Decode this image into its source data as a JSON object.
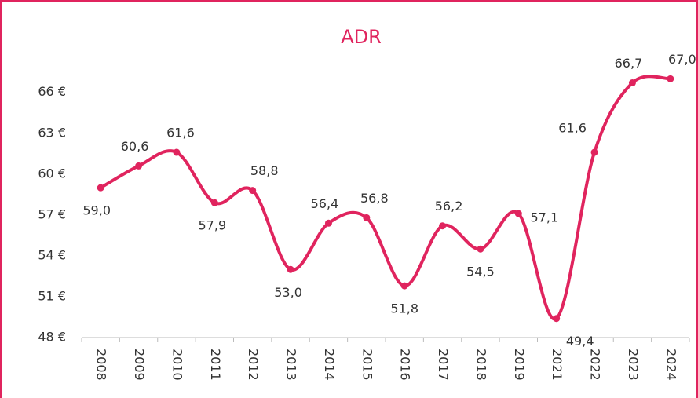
{
  "chart_data": {
    "type": "line",
    "title": "ADR",
    "categories": [
      "2008",
      "2009",
      "2010",
      "2011",
      "2012",
      "2013",
      "2014",
      "2015",
      "2016",
      "2017",
      "2018",
      "2019",
      "2021",
      "2022",
      "2023",
      "2024"
    ],
    "series": [
      {
        "name": "ADR",
        "color": "#e0245e",
        "values": [
          59.0,
          60.6,
          61.6,
          57.9,
          58.8,
          53.0,
          56.4,
          56.8,
          51.8,
          56.2,
          54.5,
          57.1,
          49.4,
          61.6,
          66.7,
          67.0
        ],
        "value_labels": [
          "59,0",
          "60,6",
          "61,6",
          "57,9",
          "58,8",
          "53,0",
          "56,4",
          "56,8",
          "51,8",
          "56,2",
          "54,5",
          "57,1",
          "49,4",
          "61,6",
          "66,7",
          "67,0"
        ]
      }
    ],
    "ylim": [
      48,
      68
    ],
    "yticks": [
      {
        "value": 48,
        "label": "48 €"
      },
      {
        "value": 51,
        "label": "51 €"
      },
      {
        "value": 54,
        "label": "54 €"
      },
      {
        "value": 57,
        "label": "57 €"
      },
      {
        "value": 60,
        "label": "60 €"
      },
      {
        "value": 63,
        "label": "63 €"
      },
      {
        "value": 66,
        "label": "66 €"
      }
    ],
    "grid": false,
    "smooth": true
  }
}
